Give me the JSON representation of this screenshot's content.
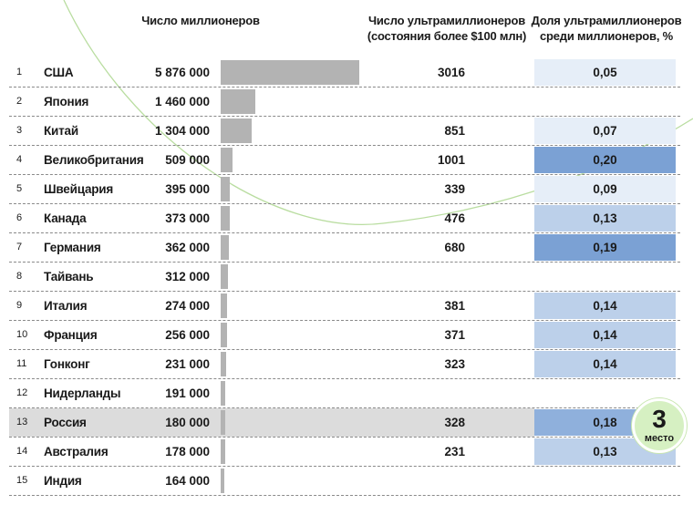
{
  "headers": {
    "millionaires": "Число миллионеров",
    "ultra": "Число ультрамиллионеров (состояния более $100 млн)",
    "share": "Доля ультрамиллионеров среди миллионеров, %"
  },
  "badge": {
    "number": "3",
    "text": "место"
  },
  "colors": {
    "bar": "#b3b3b3",
    "share_scale": [
      "#e6eef8",
      "#bcd0ea",
      "#8fb0dc",
      "#7ba1d4"
    ],
    "highlight_row": "#dcdcdc",
    "badge": "#d6f0c2"
  },
  "chart_data": {
    "type": "table",
    "bar_max": 5876000,
    "highlight_country": "Россия",
    "rows": [
      {
        "rank": "1",
        "country": "США",
        "millionaires": "5 876 000",
        "millionaires_value": 5876000,
        "ultra": "3016",
        "share": "0,05",
        "share_value": 0.05
      },
      {
        "rank": "2",
        "country": "Япония",
        "millionaires": "1 460 000",
        "millionaires_value": 1460000,
        "ultra": "",
        "share": "",
        "share_value": null
      },
      {
        "rank": "3",
        "country": "Китай",
        "millionaires": "1 304 000",
        "millionaires_value": 1304000,
        "ultra": "851",
        "share": "0,07",
        "share_value": 0.07
      },
      {
        "rank": "4",
        "country": "Великобритания",
        "millionaires": "509 000",
        "millionaires_value": 509000,
        "ultra": "1001",
        "share": "0,20",
        "share_value": 0.2
      },
      {
        "rank": "5",
        "country": "Швейцария",
        "millionaires": "395 000",
        "millionaires_value": 395000,
        "ultra": "339",
        "share": "0,09",
        "share_value": 0.09
      },
      {
        "rank": "6",
        "country": "Канада",
        "millionaires": "373 000",
        "millionaires_value": 373000,
        "ultra": "476",
        "share": "0,13",
        "share_value": 0.13
      },
      {
        "rank": "7",
        "country": "Германия",
        "millionaires": "362 000",
        "millionaires_value": 362000,
        "ultra": "680",
        "share": "0,19",
        "share_value": 0.19
      },
      {
        "rank": "8",
        "country": "Тайвань",
        "millionaires": "312 000",
        "millionaires_value": 312000,
        "ultra": "",
        "share": "",
        "share_value": null
      },
      {
        "rank": "9",
        "country": "Италия",
        "millionaires": "274 000",
        "millionaires_value": 274000,
        "ultra": "381",
        "share": "0,14",
        "share_value": 0.14
      },
      {
        "rank": "10",
        "country": "Франция",
        "millionaires": "256 000",
        "millionaires_value": 256000,
        "ultra": "371",
        "share": "0,14",
        "share_value": 0.14
      },
      {
        "rank": "11",
        "country": "Гонконг",
        "millionaires": "231 000",
        "millionaires_value": 231000,
        "ultra": "323",
        "share": "0,14",
        "share_value": 0.14
      },
      {
        "rank": "12",
        "country": "Нидерланды",
        "millionaires": "191 000",
        "millionaires_value": 191000,
        "ultra": "",
        "share": "",
        "share_value": null
      },
      {
        "rank": "13",
        "country": "Россия",
        "millionaires": "180 000",
        "millionaires_value": 180000,
        "ultra": "328",
        "share": "0,18",
        "share_value": 0.18
      },
      {
        "rank": "14",
        "country": "Австралия",
        "millionaires": "178 000",
        "millionaires_value": 178000,
        "ultra": "231",
        "share": "0,13",
        "share_value": 0.13
      },
      {
        "rank": "15",
        "country": "Индия",
        "millionaires": "164 000",
        "millionaires_value": 164000,
        "ultra": "",
        "share": "",
        "share_value": null
      }
    ]
  }
}
